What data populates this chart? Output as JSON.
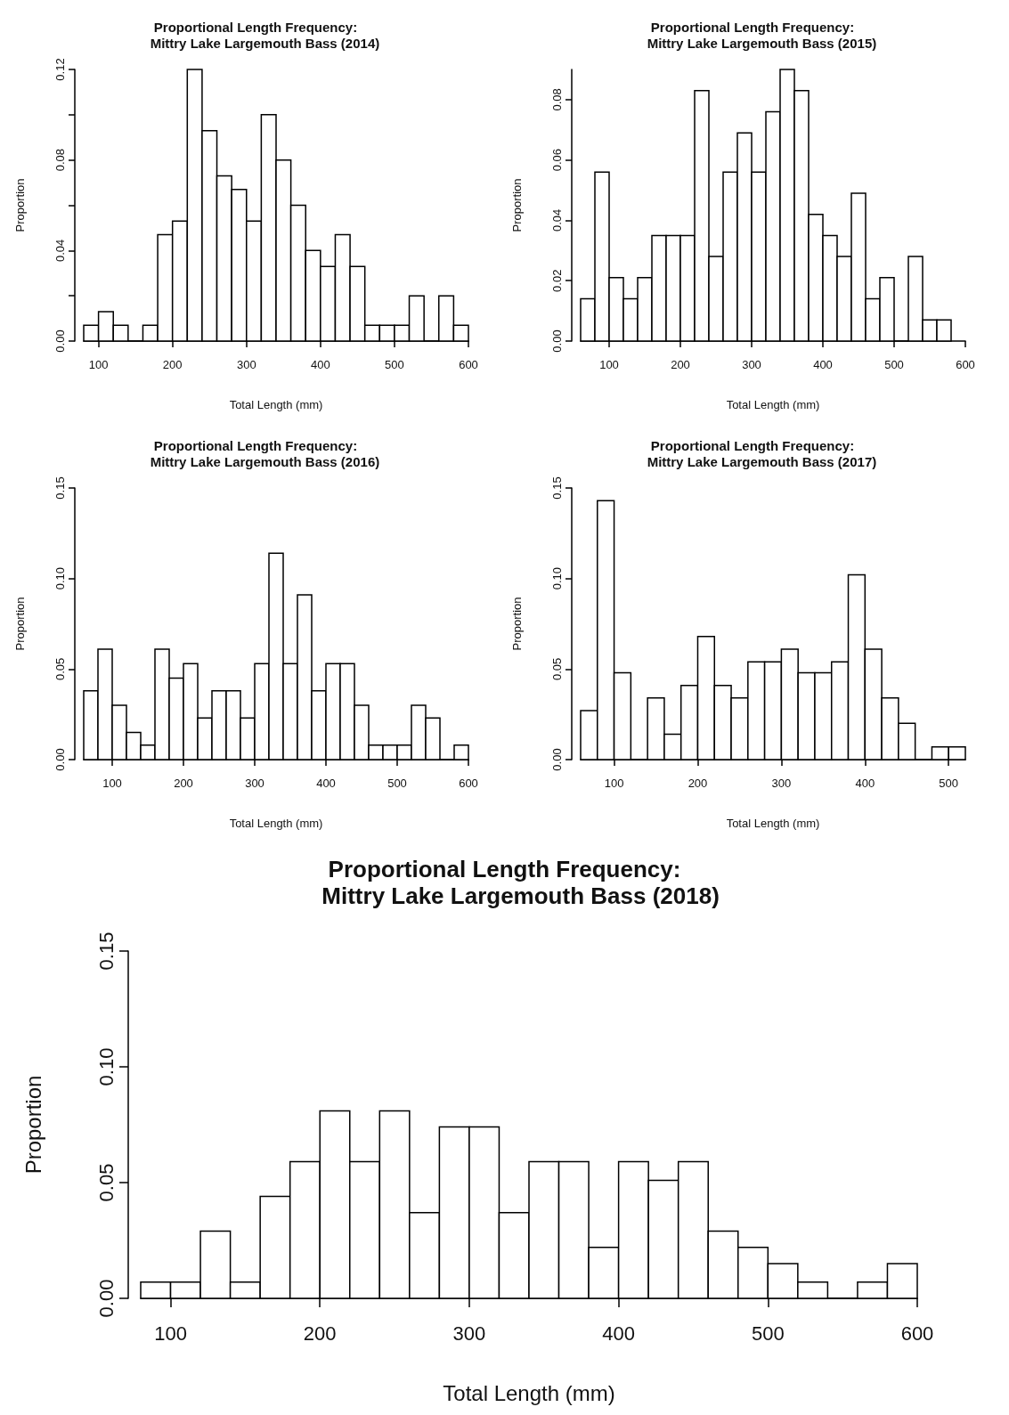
{
  "chart_data": [
    {
      "type": "histogram",
      "title": "Proportional Length Frequency:\n     Mittry Lake Largemouth Bass (2014)",
      "xlabel": "Total Length (mm)",
      "ylabel": "Proportion",
      "color": "#ffffff",
      "bins": [
        80,
        100,
        120,
        140,
        160,
        180,
        200,
        220,
        240,
        260,
        280,
        300,
        320,
        340,
        360,
        380,
        400,
        420,
        440,
        460,
        480,
        500,
        520,
        540,
        560,
        580,
        600
      ],
      "values": [
        0.007,
        0.013,
        0.007,
        0,
        0.007,
        0.047,
        0.053,
        0.12,
        0.093,
        0.073,
        0.067,
        0.053,
        0.1,
        0.08,
        0.06,
        0.04,
        0.033,
        0.047,
        0.033,
        0.007,
        0.007,
        0.007,
        0.02,
        0,
        0.02,
        0.007
      ],
      "xlim": [
        80,
        600
      ],
      "xticks": [
        100,
        200,
        300,
        400,
        500,
        600
      ],
      "ylim": [
        0,
        0.12
      ],
      "yticks": [
        {
          "value": 0,
          "label": "0.00"
        },
        {
          "value": 0.02,
          "label": null
        },
        {
          "value": 0.04,
          "label": "0.04"
        },
        {
          "value": 0.06,
          "label": null
        },
        {
          "value": 0.08,
          "label": "0.08"
        },
        {
          "value": 0.1,
          "label": null
        },
        {
          "value": 0.12,
          "label": "0.12"
        }
      ]
    },
    {
      "type": "histogram",
      "title": "Proportional Length Frequency:\n     Mittry Lake Largemouth Bass (2015)",
      "xlabel": "Total Length (mm)",
      "ylabel": "Proportion",
      "color": "#ffffff",
      "bins": [
        60,
        80,
        100,
        120,
        140,
        160,
        180,
        200,
        220,
        240,
        260,
        280,
        300,
        320,
        340,
        360,
        380,
        400,
        420,
        440,
        460,
        480,
        500,
        520,
        540,
        560,
        580
      ],
      "values": [
        0.014,
        0.056,
        0.021,
        0.014,
        0.021,
        0.035,
        0.035,
        0.035,
        0.083,
        0.028,
        0.056,
        0.069,
        0.056,
        0.076,
        0.09,
        0.083,
        0.042,
        0.035,
        0.028,
        0.049,
        0.014,
        0.021,
        0,
        0.028,
        0.007,
        0.007
      ],
      "xlim": [
        60,
        600
      ],
      "xticks": [
        100,
        200,
        300,
        400,
        500,
        600
      ],
      "ylim": [
        0,
        0.09
      ],
      "yticks": [
        {
          "value": 0,
          "label": "0.00"
        },
        {
          "value": 0.02,
          "label": "0.02"
        },
        {
          "value": 0.04,
          "label": "0.04"
        },
        {
          "value": 0.06,
          "label": "0.06"
        },
        {
          "value": 0.08,
          "label": "0.08"
        }
      ]
    },
    {
      "type": "histogram",
      "title": "Proportional Length Frequency:\n     Mittry Lake Largemouth Bass (2016)",
      "xlabel": "Total Length (mm)",
      "ylabel": "Proportion",
      "color": "#ffffff",
      "bins": [
        60,
        80,
        100,
        120,
        140,
        160,
        180,
        200,
        220,
        240,
        260,
        280,
        300,
        320,
        340,
        360,
        380,
        400,
        420,
        440,
        460,
        480,
        500,
        520,
        540,
        560,
        580,
        600
      ],
      "values": [
        0.038,
        0.061,
        0.03,
        0.015,
        0.008,
        0.061,
        0.045,
        0.053,
        0.023,
        0.038,
        0.038,
        0.023,
        0.053,
        0.114,
        0.053,
        0.091,
        0.038,
        0.053,
        0.053,
        0.03,
        0.008,
        0.008,
        0.008,
        0.03,
        0.023,
        0,
        0.008
      ],
      "xlim": [
        60,
        600
      ],
      "xticks": [
        100,
        200,
        300,
        400,
        500,
        600
      ],
      "ylim": [
        0,
        0.15
      ],
      "yticks": [
        {
          "value": 0,
          "label": "0.00"
        },
        {
          "value": 0.05,
          "label": "0.05"
        },
        {
          "value": 0.1,
          "label": "0.10"
        },
        {
          "value": 0.15,
          "label": "0.15"
        }
      ]
    },
    {
      "type": "histogram",
      "title": "Proportional Length Frequency:\n     Mittry Lake Largemouth Bass (2017)",
      "xlabel": "Total Length (mm)",
      "ylabel": "Proportion",
      "color": "#ffffff",
      "bins": [
        60,
        80,
        100,
        120,
        140,
        160,
        180,
        200,
        220,
        240,
        260,
        280,
        300,
        320,
        340,
        360,
        380,
        400,
        420,
        440,
        460,
        480,
        500,
        520
      ],
      "values": [
        0.027,
        0.143,
        0.048,
        0,
        0.034,
        0.014,
        0.041,
        0.068,
        0.041,
        0.034,
        0.054,
        0.054,
        0.061,
        0.048,
        0.048,
        0.054,
        0.102,
        0.061,
        0.034,
        0.02,
        0,
        0.007,
        0.007
      ],
      "xlim": [
        60,
        520
      ],
      "xticks": [
        100,
        200,
        300,
        400,
        500
      ],
      "ylim": [
        0,
        0.15
      ],
      "yticks": [
        {
          "value": 0,
          "label": "0.00"
        },
        {
          "value": 0.05,
          "label": "0.05"
        },
        {
          "value": 0.1,
          "label": "0.10"
        },
        {
          "value": 0.15,
          "label": "0.15"
        }
      ]
    },
    {
      "type": "histogram",
      "title": "Proportional Length Frequency:\n     Mittry Lake Largemouth Bass (2018)",
      "xlabel": "Total Length (mm)",
      "ylabel": "Proportion",
      "color": "#ffffff",
      "bins": [
        80,
        100,
        120,
        140,
        160,
        180,
        200,
        220,
        240,
        260,
        280,
        300,
        320,
        340,
        360,
        380,
        400,
        420,
        440,
        460,
        480,
        500,
        520,
        540,
        560,
        580,
        600
      ],
      "values": [
        0.007,
        0.007,
        0.029,
        0.007,
        0.044,
        0.059,
        0.081,
        0.059,
        0.081,
        0.037,
        0.074,
        0.074,
        0.037,
        0.059,
        0.059,
        0.022,
        0.059,
        0.051,
        0.059,
        0.029,
        0.022,
        0.015,
        0.007,
        0,
        0.007,
        0.015
      ],
      "xlim": [
        80,
        600
      ],
      "xticks": [
        100,
        200,
        300,
        400,
        500,
        600
      ],
      "ylim": [
        0,
        0.15
      ],
      "yticks": [
        {
          "value": 0,
          "label": "0.00"
        },
        {
          "value": 0.05,
          "label": "0.05"
        },
        {
          "value": 0.1,
          "label": "0.10"
        },
        {
          "value": 0.15,
          "label": "0.15"
        }
      ]
    }
  ]
}
